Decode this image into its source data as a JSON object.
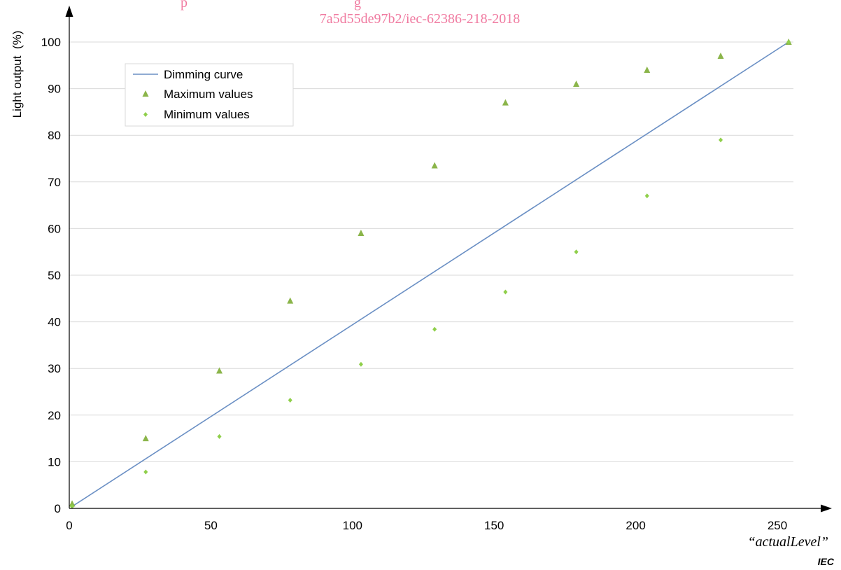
{
  "watermark": {
    "line1": "p",
    "line1_tail": "g",
    "line2": "7a5d55de97b2/iec-62386-218-2018"
  },
  "source_label": "IEC",
  "colors": {
    "curve": "#6a8fc4",
    "max_marker": "#8bb54a",
    "min_marker": "#8fcf4a",
    "grid": "#d9d9d9",
    "axis": "#000000",
    "watermark": "#f07aa0"
  },
  "chart_data": {
    "type": "scatter",
    "title": "",
    "xlabel": "“actualLevel”",
    "ylabel": "Light output  (%)",
    "xlim": [
      0,
      260
    ],
    "ylim": [
      0,
      100
    ],
    "xticks": [
      0,
      50,
      100,
      150,
      200,
      250
    ],
    "yticks": [
      0,
      10,
      20,
      30,
      40,
      50,
      60,
      70,
      80,
      90,
      100
    ],
    "grid": true,
    "legend_position": "top-left",
    "series": [
      {
        "name": "Dimming curve",
        "kind": "line",
        "x": [
          1,
          254
        ],
        "y": [
          0.4,
          100
        ]
      },
      {
        "name": "Maximum values",
        "kind": "triangle",
        "x": [
          1,
          27,
          53,
          78,
          103,
          129,
          154,
          179,
          204,
          230,
          254
        ],
        "y": [
          1,
          15,
          29.5,
          44.5,
          59,
          73.5,
          87,
          91,
          94,
          97,
          100
        ]
      },
      {
        "name": "Minimum values",
        "kind": "diamond",
        "x": [
          1,
          27,
          53,
          78,
          103,
          129,
          154,
          179,
          204,
          230,
          254
        ],
        "y": [
          0.4,
          7.8,
          15.4,
          23.2,
          30.9,
          38.4,
          46.4,
          55,
          67,
          79,
          100
        ]
      }
    ]
  }
}
